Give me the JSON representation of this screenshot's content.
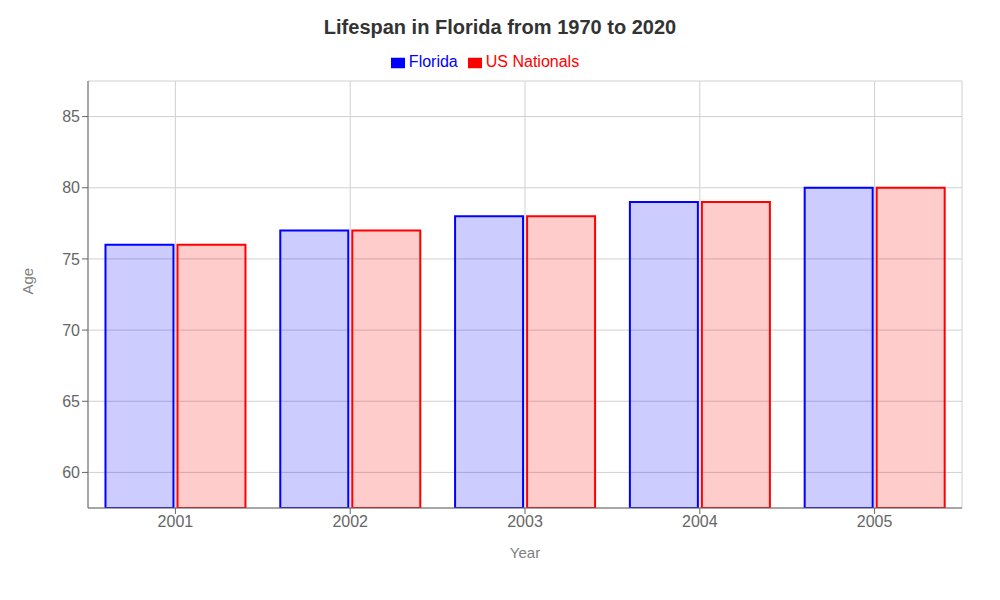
{
  "chart_data": {
    "type": "bar",
    "title": "Lifespan in Florida from 1970 to 2020",
    "x_label": "Year",
    "y_label": "Age",
    "categories": [
      "2001",
      "2002",
      "2003",
      "2004",
      "2005"
    ],
    "series": [
      {
        "name": "Florida",
        "color": "#0000ff",
        "values": [
          76.0,
          77.0,
          78.0,
          79.0,
          80.0
        ]
      },
      {
        "name": "US Nationals",
        "color": "#ff0000",
        "values": [
          76.0,
          77.0,
          78.0,
          79.0,
          80.0
        ]
      }
    ],
    "ylim": [
      57.5,
      87.5
    ],
    "yticks": [
      60,
      65,
      70,
      75,
      80,
      85
    ],
    "grid": true,
    "legend": "top"
  }
}
